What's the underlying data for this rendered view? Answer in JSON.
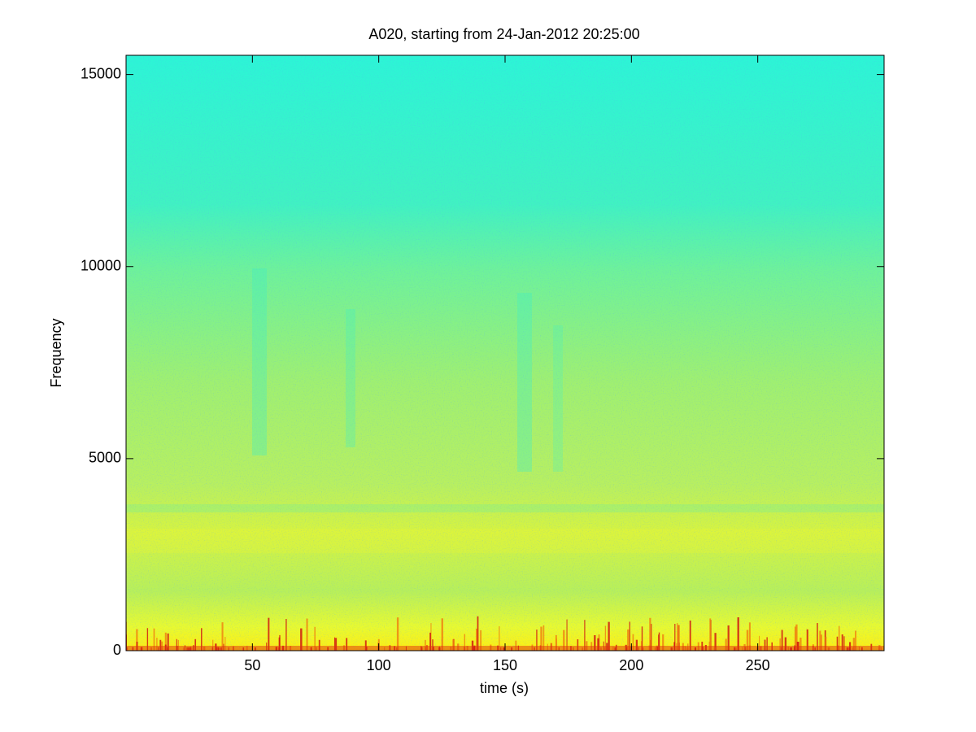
{
  "chart_data": {
    "type": "spectrogram",
    "title": "A020, starting from 24-Jan-2012 20:25:00",
    "x_label": "time (s)",
    "y_label": "Frequency",
    "xlim": [
      0,
      300
    ],
    "xticks": [
      50,
      100,
      150,
      200,
      250
    ],
    "ylim": [
      0,
      15500
    ],
    "yticks": [
      0,
      5000,
      10000,
      15000
    ]
  }
}
